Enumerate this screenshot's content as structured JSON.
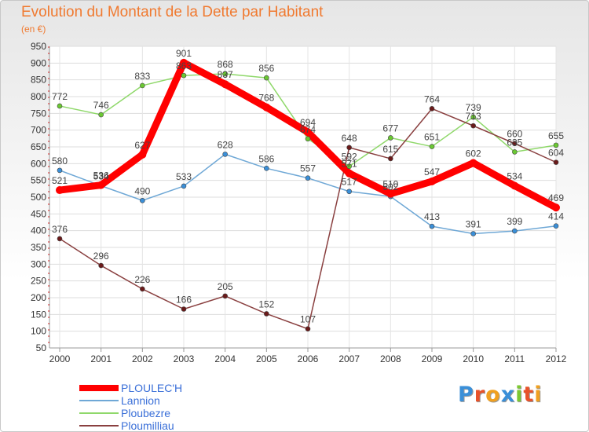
{
  "title": "Evolution du Montant de la Dette par Habitant",
  "unit": "(en €)",
  "logo": {
    "text": "Proxiti",
    "colors": [
      "#3a8fd8",
      "#e8522a",
      "#f0a020",
      "#3a8fd8",
      "#7cc832",
      "#e8522a",
      "#f0a020"
    ]
  },
  "chart_data": {
    "type": "line",
    "x": [
      "2000",
      "2001",
      "2002",
      "2003",
      "2004",
      "2005",
      "2006",
      "2007",
      "2008",
      "2009",
      "2010",
      "2011",
      "2012"
    ],
    "ylim": [
      50,
      950
    ],
    "yticks": [
      50,
      100,
      150,
      200,
      250,
      300,
      350,
      400,
      450,
      500,
      550,
      600,
      650,
      700,
      750,
      800,
      850,
      900,
      950
    ],
    "grid": true,
    "legend_position": "bottom-left",
    "series": [
      {
        "name": "PLOULEC'H",
        "color": "#ff0000",
        "point_color": "#ff0000",
        "thick": true,
        "values": [
          521,
          536,
          627,
          901,
          837,
          768,
          694,
          571,
          510,
          547,
          602,
          534,
          469
        ],
        "labels": [
          "521",
          "536",
          "627",
          "901",
          "837",
          "768",
          "694",
          "571",
          "510",
          "547",
          "602",
          "534",
          "469"
        ]
      },
      {
        "name": "Lannion",
        "color": "#6fa8d6",
        "point_color": "#3a8fd8",
        "values": [
          580,
          534,
          490,
          533,
          628,
          586,
          557,
          517,
          502,
          413,
          391,
          399,
          414
        ],
        "labels": [
          "580",
          "534",
          "490",
          "533",
          "628",
          "586",
          "557",
          "517",
          "502",
          "413",
          "391",
          "399",
          "414"
        ]
      },
      {
        "name": "Ploubezre",
        "color": "#8fd86a",
        "point_color": "#6ac832",
        "values": [
          772,
          746,
          833,
          863,
          868,
          856,
          674,
          592,
          677,
          651,
          739,
          635,
          655
        ],
        "labels": [
          "772",
          "746",
          "833",
          "863",
          "868",
          "856",
          "674",
          "592",
          "677",
          "651",
          "739",
          "635",
          "655"
        ]
      },
      {
        "name": "Ploumilliau",
        "color": "#8a4040",
        "point_color": "#6a1a1a",
        "values": [
          376,
          296,
          226,
          166,
          205,
          152,
          107,
          648,
          615,
          764,
          713,
          660,
          604
        ],
        "labels": [
          "376",
          "296",
          "226",
          "166",
          "205",
          "152",
          "107",
          "648",
          "615",
          "764",
          "713",
          "660",
          "604"
        ]
      }
    ]
  }
}
